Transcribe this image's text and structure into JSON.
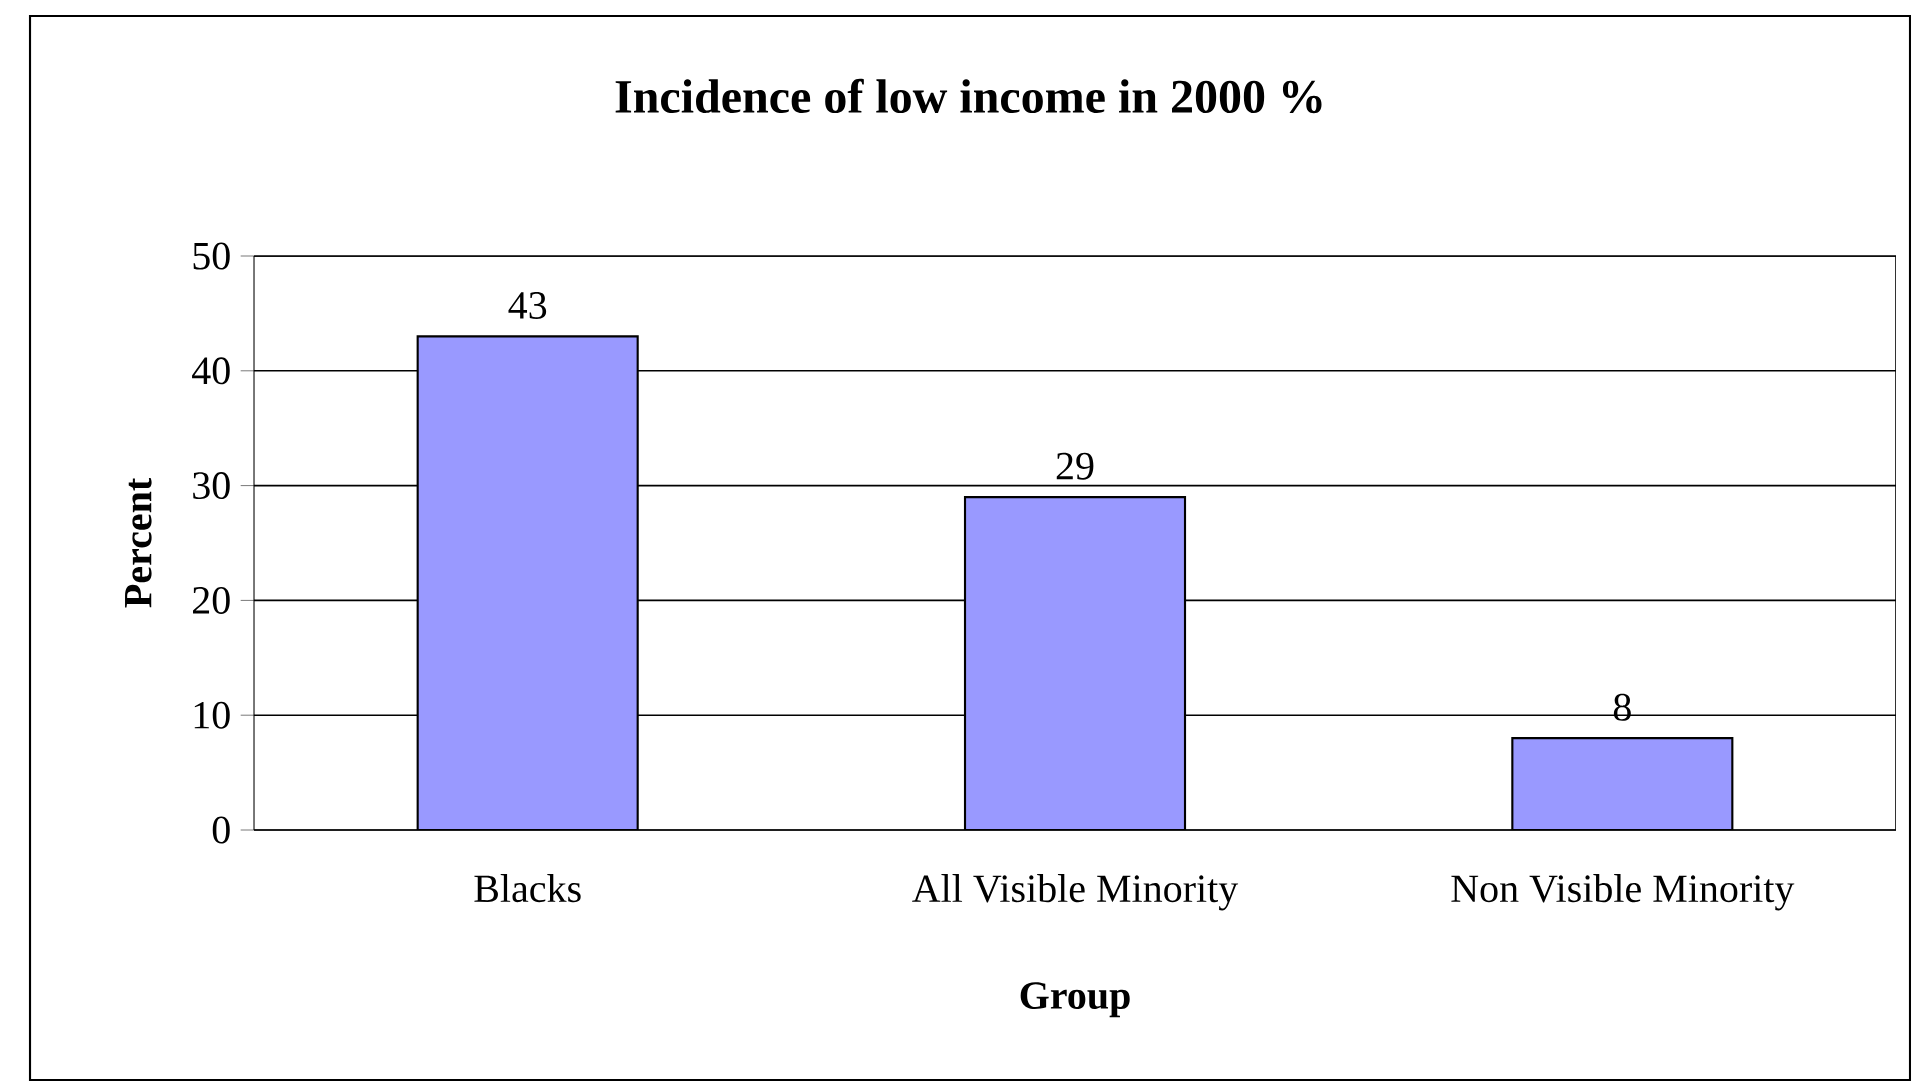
{
  "chart_data": {
    "type": "bar",
    "title": "Incidence of low income in 2000 %",
    "xlabel": "Group",
    "ylabel": "Percent",
    "categories": [
      "Blacks",
      "All Visible Minority",
      "Non Visible Minority"
    ],
    "values": [
      43,
      29,
      8
    ],
    "color": "#9999ff",
    "ylim": [
      0,
      50
    ],
    "yticks": [
      0,
      10,
      20,
      30,
      40,
      50
    ],
    "grid": "y",
    "data_labels": true
  }
}
